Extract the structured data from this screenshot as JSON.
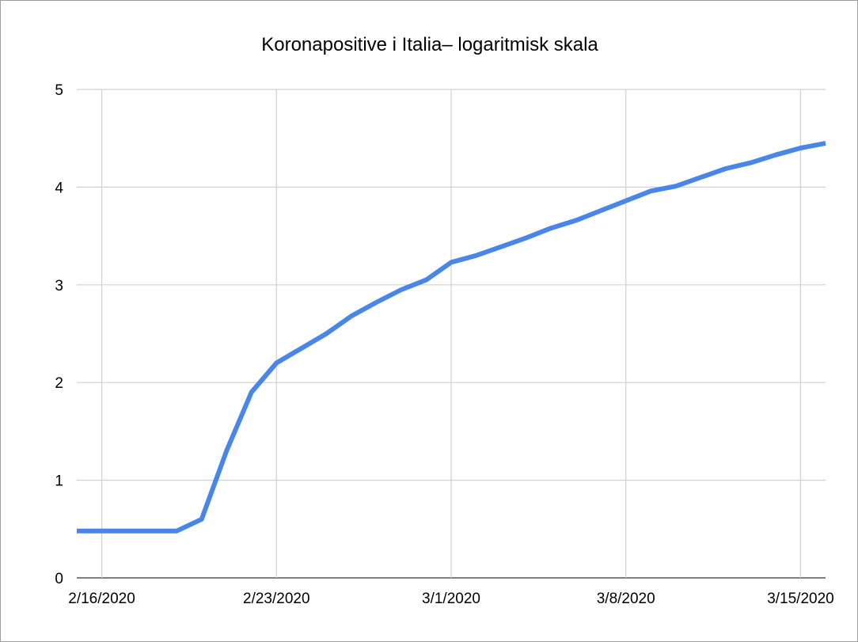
{
  "chart_data": {
    "type": "line",
    "title": "Koronapositive i Italia– logaritmisk skala",
    "xlabel": "",
    "ylabel": "",
    "x_tick_labels": [
      "2/16/2020",
      "2/23/2020",
      "3/1/2020",
      "3/8/2020",
      "3/15/2020"
    ],
    "x_tick_dates": [
      "2020-02-16",
      "2020-02-23",
      "2020-03-01",
      "2020-03-08",
      "2020-03-15"
    ],
    "y_ticks": [
      0,
      1,
      2,
      3,
      4,
      5
    ],
    "ylim": [
      0,
      5
    ],
    "xlim": [
      "2020-02-15",
      "2020-03-16"
    ],
    "grid": true,
    "legend": "none",
    "series": [
      {
        "color": "#4a86e8",
        "x": [
          "2020-02-15",
          "2020-02-16",
          "2020-02-17",
          "2020-02-18",
          "2020-02-19",
          "2020-02-20",
          "2020-02-21",
          "2020-02-22",
          "2020-02-23",
          "2020-02-24",
          "2020-02-25",
          "2020-02-26",
          "2020-02-27",
          "2020-02-28",
          "2020-02-29",
          "2020-03-01",
          "2020-03-02",
          "2020-03-03",
          "2020-03-04",
          "2020-03-05",
          "2020-03-06",
          "2020-03-07",
          "2020-03-08",
          "2020-03-09",
          "2020-03-10",
          "2020-03-11",
          "2020-03-12",
          "2020-03-13",
          "2020-03-14",
          "2020-03-15",
          "2020-03-16"
        ],
        "values": [
          0.48,
          0.48,
          0.48,
          0.48,
          0.48,
          0.6,
          1.3,
          1.9,
          2.2,
          2.35,
          2.5,
          2.68,
          2.82,
          2.95,
          3.05,
          3.23,
          3.3,
          3.39,
          3.48,
          3.58,
          3.66,
          3.76,
          3.86,
          3.96,
          4.01,
          4.1,
          4.19,
          4.25,
          4.33,
          4.4,
          4.45
        ]
      }
    ]
  }
}
